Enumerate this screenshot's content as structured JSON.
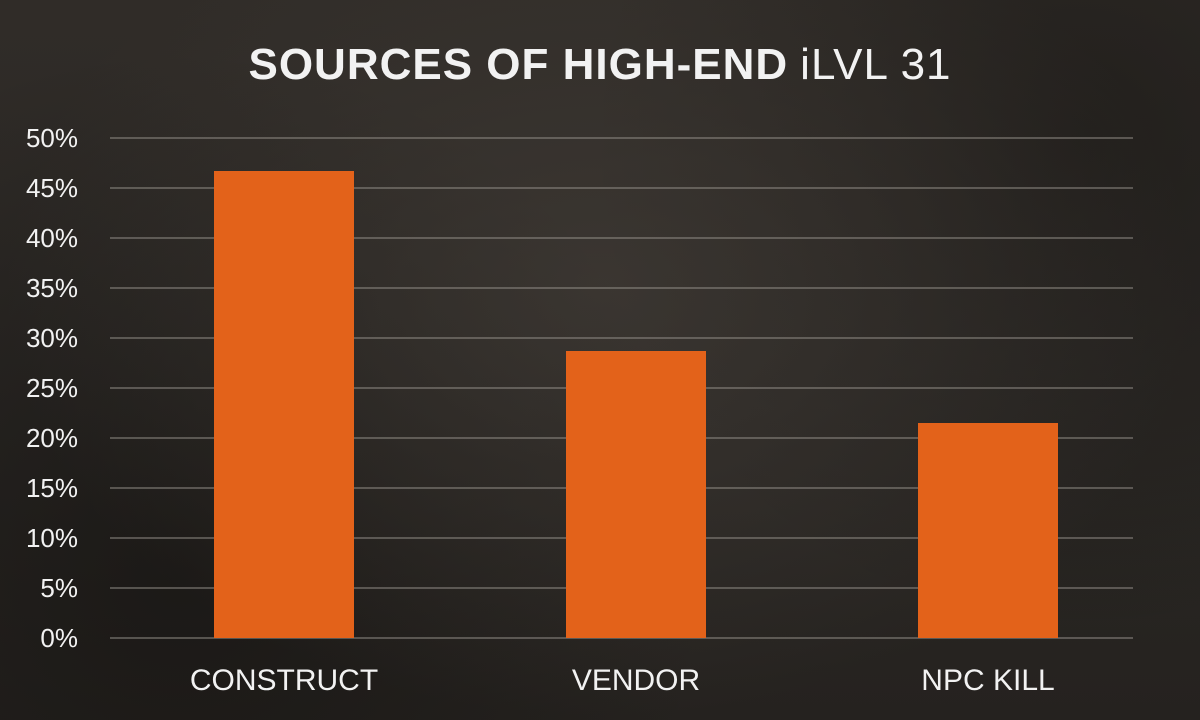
{
  "title": {
    "bold": "SOURCES OF HIGH-END",
    "light": "iLVL 31"
  },
  "colors": {
    "bar": "#e3621a",
    "grid": "#9a958f",
    "text": "#f2f2f2"
  },
  "chart_data": {
    "type": "bar",
    "title": "SOURCES OF HIGH-END iLVL 31",
    "categories": [
      "CONSTRUCT",
      "VENDOR",
      "NPC KILL"
    ],
    "values": [
      46.7,
      28.7,
      21.5
    ],
    "ylim": [
      0,
      50
    ],
    "yticks": [
      0,
      5,
      10,
      15,
      20,
      25,
      30,
      35,
      40,
      45,
      50
    ],
    "ytick_labels": [
      "0%",
      "5%",
      "10%",
      "15%",
      "20%",
      "25%",
      "30%",
      "35%",
      "40%",
      "45%",
      "50%"
    ],
    "xlabel": "",
    "ylabel": "",
    "grid": true,
    "legend": false
  }
}
